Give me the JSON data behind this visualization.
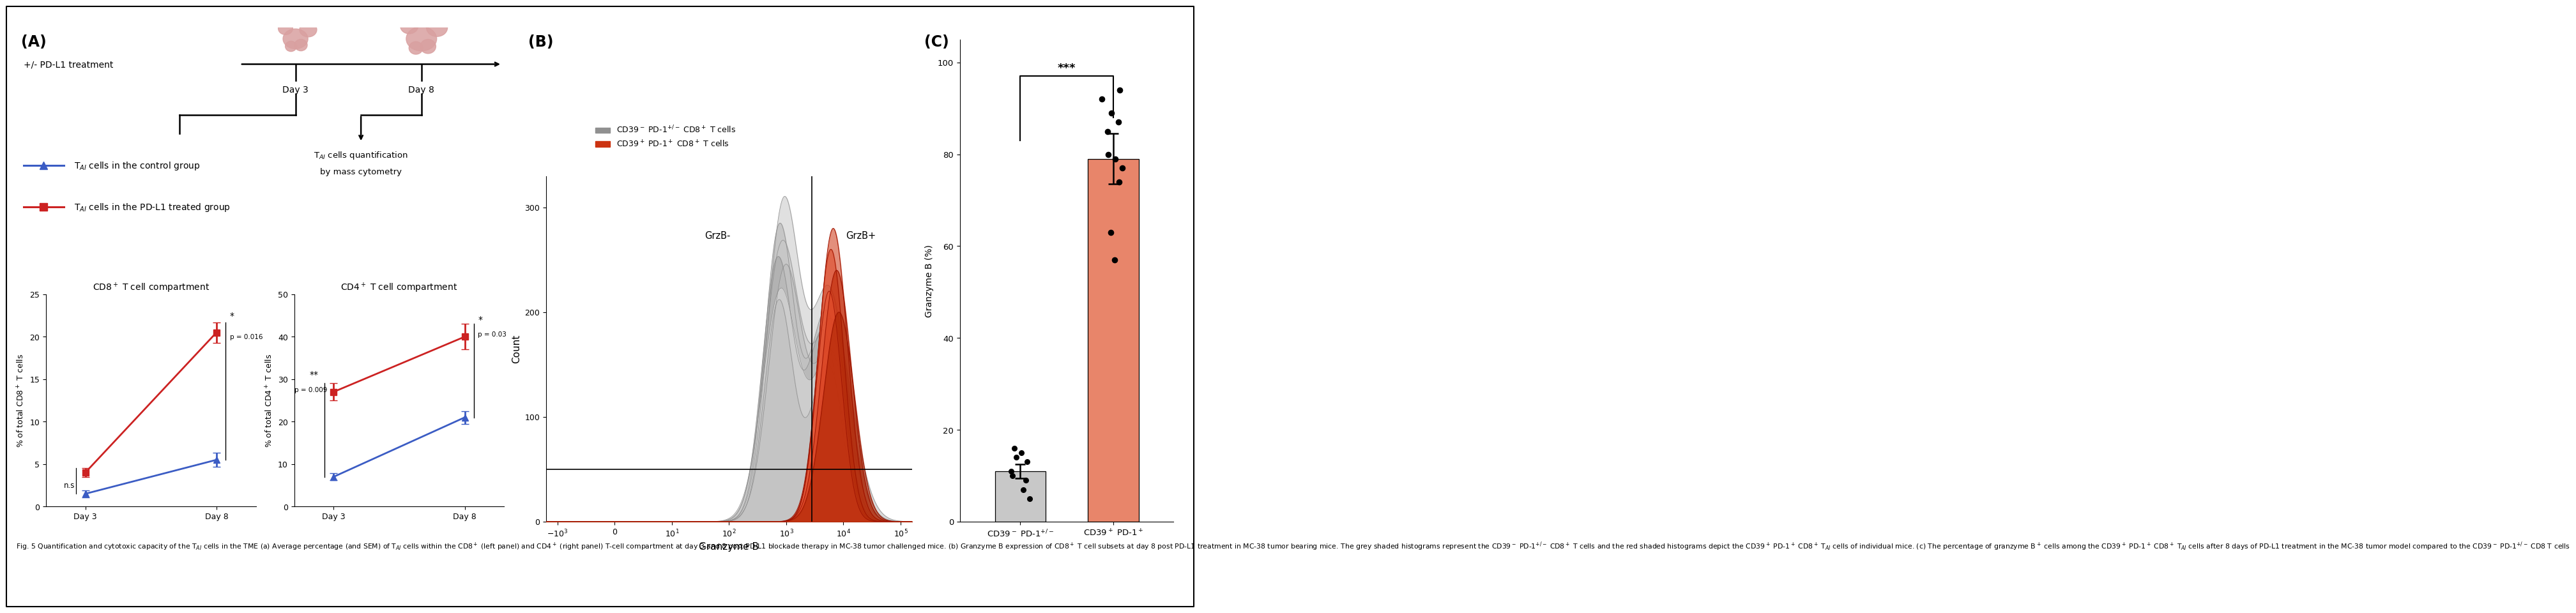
{
  "panel_A_label": "(A)",
  "panel_B_label": "(B)",
  "panel_C_label": "(C)",
  "timeline_text1": "+/- PD-L1 treatment",
  "timeline_day3": "Day 3",
  "timeline_day8": "Day 8",
  "timeline_quant_line1": "T$_{AI}$ cells quantification",
  "timeline_quant_line2": "by mass cytometry",
  "legend_control": "T$_{AI}$ cells in the control group",
  "legend_pdl1": "T$_{AI}$ cells in the PD-L1 treated group",
  "cd8_title": "CD8$^+$ T cell compartment",
  "cd4_title": "CD4$^+$ T cell compartment",
  "cd8_ylabel": "% of total CD8$^+$ T cells",
  "cd4_ylabel": "% of total CD4$^+$ T cells",
  "cd8_ctrl_vals": [
    1.5,
    5.5
  ],
  "cd8_ctrl_errs": [
    0.4,
    0.8
  ],
  "cd8_pdl1_vals": [
    4.0,
    20.5
  ],
  "cd8_pdl1_errs": [
    0.5,
    1.2
  ],
  "cd8_ylim": [
    0,
    25
  ],
  "cd8_yticks": [
    0,
    5,
    10,
    15,
    20,
    25
  ],
  "cd4_ctrl_vals": [
    7.0,
    21.0
  ],
  "cd4_ctrl_errs": [
    0.8,
    1.5
  ],
  "cd4_pdl1_vals": [
    27.0,
    40.0
  ],
  "cd4_pdl1_errs": [
    2.0,
    3.0
  ],
  "cd4_ylim": [
    0,
    50
  ],
  "cd4_yticks": [
    0,
    10,
    20,
    30,
    40,
    50
  ],
  "cd8_ns_text": "n.s",
  "cd8_star_text": "*",
  "cd8_pval_text": "p = 0.016",
  "cd4_star_text": "**",
  "cd4_pval_text1": "p = 0.009",
  "cd4_star_text2": "*",
  "cd4_pval_text2": "p = 0.03",
  "control_color": "#3B5CC4",
  "pdl1_color": "#CC2222",
  "salmon_color": "#E8856A",
  "grey_bar_color": "#C8C8C8",
  "hist_legend1": "CD39$^-$ PD-1$^{+/-}$ CD8$^+$ T cells",
  "hist_legend2": "CD39$^+$ PD-1$^+$ CD8$^+$ T cells",
  "hist_xlabel": "Granzyme B",
  "hist_ylabel": "Count",
  "hist_grzb_minus": "GrzB-",
  "hist_grzb_plus": "GrzB+",
  "bar_cat1": "CD39$^-$ PD-1$^{+/-}$",
  "bar_cat2": "CD39$^+$ PD-1$^+$",
  "bar_val1": 11.0,
  "bar_val2": 79.0,
  "bar_err1": 1.5,
  "bar_err2": 5.5,
  "bar_ylabel": "Granzyme B (%)",
  "bar_yticks": [
    0,
    20,
    40,
    60,
    80,
    100
  ],
  "bar_dots1": [
    5.0,
    7.0,
    9.0,
    10.0,
    11.0,
    13.0,
    14.0,
    15.0,
    16.0
  ],
  "bar_dots2": [
    57.0,
    63.0,
    74.0,
    77.0,
    79.0,
    80.0,
    85.0,
    87.0,
    89.0,
    92.0,
    94.0
  ],
  "significance_text": "***",
  "caption": "Fig. 5 Quantification and cytotoxic capacity of the T$_{AI}$ cells in the TME (a) Average percentage (and SEM) of T$_{AI}$ cells within the CD8$^+$ (left panel) and CD4$^+$ (right panel) T-cell compartment at day 3 and 8 post PD-L1 blockade therapy in MC-38 tumor challenged mice. (b) Granzyme B expression of CD8$^+$ T cell subsets at day 8 post PD-L1 treatment in MC-38 tumor bearing mice. The grey shaded histograms represent the CD39$^-$ PD-1$^{+/-}$ CD8$^+$ T cells and the red shaded histograms depict the CD39$^+$ PD-1$^+$ CD8$^+$ T$_{AI}$ cells of individual mice. (c) The percentage of granzyme B$^+$ cells among the CD39$^+$ PD-1$^+$ CD8$^+$ T$_{AI}$ cells after 8 days of PD-L1 treatment in the MC-38 tumor model compared to the CD39$^-$ PD-1$^{+/-}$ CD8 T cells"
}
